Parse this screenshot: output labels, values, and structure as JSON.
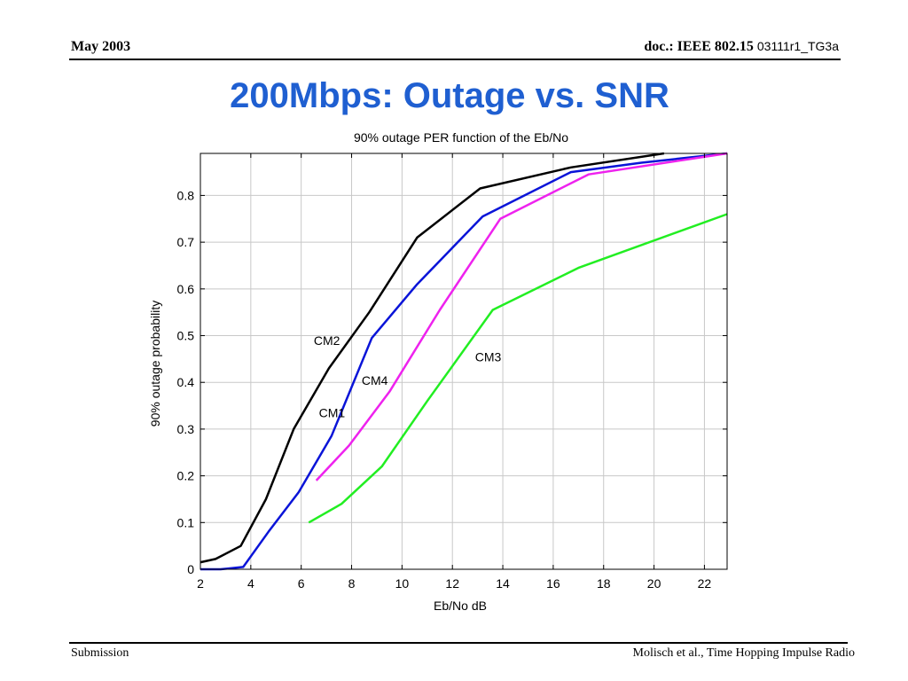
{
  "header": {
    "date": "May 2003",
    "doc_label": "doc.: IEEE 802.15",
    "doc_number": "03111r1_TG3a"
  },
  "slide_title": "200Mbps: Outage vs. SNR",
  "footer": {
    "left": "Submission",
    "right": "Molisch et al., Time  Hopping Impulse Radio"
  },
  "colors": {
    "title": "#1f5fd1",
    "CM1": "#0a14d8",
    "CM2": "#000000",
    "CM3": "#22ee22",
    "CM4": "#ee22ee"
  },
  "chart_data": {
    "type": "line",
    "title": "90% outage PER function of the Eb/No",
    "xlabel": "Eb/No dB",
    "ylabel": "90% outage probability",
    "xlim": [
      2,
      22.9
    ],
    "ylim": [
      0,
      0.89
    ],
    "xticks": [
      "2",
      "4",
      "6",
      "8",
      "10",
      "12",
      "14",
      "16",
      "18",
      "20",
      "22"
    ],
    "yticks": [
      "0",
      "0.1",
      "0.2",
      "0.3",
      "0.4",
      "0.5",
      "0.6",
      "0.7",
      "0.8"
    ],
    "grid": true,
    "series": [
      {
        "name": "CM2",
        "color_key": "CM2",
        "x": [
          2.0,
          2.6,
          3.6,
          4.6,
          5.7,
          7.1,
          8.7,
          10.6,
          13.1,
          16.7,
          20.4
        ],
        "y": [
          0.015,
          0.022,
          0.05,
          0.15,
          0.3,
          0.43,
          0.55,
          0.71,
          0.815,
          0.86,
          0.89
        ]
      },
      {
        "name": "CM1",
        "color_key": "CM1",
        "x": [
          2.0,
          2.8,
          3.7,
          4.7,
          5.9,
          7.2,
          8.8,
          10.6,
          13.2,
          16.7,
          19.5,
          22.9
        ],
        "y": [
          0.0,
          0.0,
          0.005,
          0.08,
          0.165,
          0.285,
          0.495,
          0.61,
          0.755,
          0.85,
          0.87,
          0.89
        ]
      },
      {
        "name": "CM4",
        "color_key": "CM4",
        "x": [
          6.6,
          7.9,
          9.5,
          11.5,
          13.9,
          17.4,
          22.9
        ],
        "y": [
          0.19,
          0.265,
          0.38,
          0.555,
          0.75,
          0.845,
          0.89
        ]
      },
      {
        "name": "CM3",
        "color_key": "CM3",
        "x": [
          6.3,
          7.6,
          9.2,
          11.0,
          13.6,
          17.0,
          22.9
        ],
        "y": [
          0.1,
          0.14,
          0.22,
          0.36,
          0.555,
          0.645,
          0.76
        ]
      }
    ],
    "annotations": [
      {
        "text": "CM2",
        "x": 6.5,
        "y": 0.48
      },
      {
        "text": "CM1",
        "x": 6.7,
        "y": 0.325
      },
      {
        "text": "CM4",
        "x": 8.4,
        "y": 0.395
      },
      {
        "text": "CM3",
        "x": 12.9,
        "y": 0.445
      }
    ]
  }
}
